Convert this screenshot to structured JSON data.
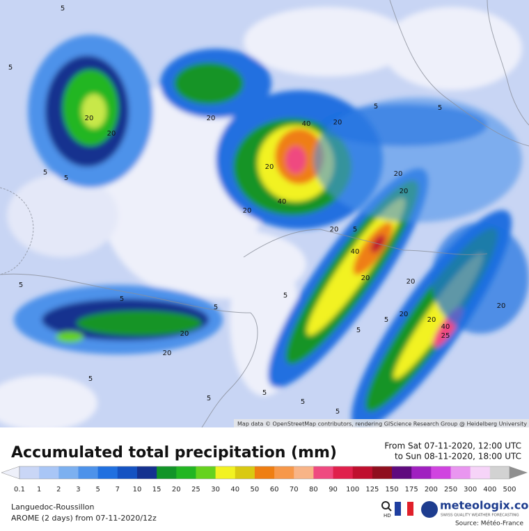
{
  "map": {
    "attribution": "Map data © OpenStreetMap contributors, rendering GIScience Research Group @ Heidelberg University",
    "labels": [
      "5",
      "5",
      "5",
      "5",
      "5",
      "5",
      "5",
      "5",
      "5",
      "5",
      "5",
      "5",
      "5",
      "5",
      "5",
      "5",
      "5",
      "5",
      "20",
      "20",
      "20",
      "20",
      "20",
      "20",
      "20",
      "20",
      "20",
      "20",
      "20",
      "20",
      "20",
      "20",
      "20",
      "20",
      "40",
      "40",
      "40",
      "40",
      "25"
    ]
  },
  "header": {
    "title": "Accumulated total precipitation (mm)",
    "from": "From Sat 07-11-2020, 12:00 UTC",
    "to": "to Sun 08-11-2020, 18:00 UTC"
  },
  "scale": {
    "labels": [
      0.1,
      1,
      2,
      3,
      5,
      7,
      10,
      15,
      20,
      25,
      30,
      40,
      50,
      60,
      70,
      80,
      90,
      100,
      125,
      150,
      175,
      200,
      250,
      300,
      400,
      500
    ],
    "colors": [
      "#c9d6f6",
      "#a9c6f6",
      "#7cb0f0",
      "#4d92ea",
      "#2070e0",
      "#1452c2",
      "#14318f",
      "#129428",
      "#22b622",
      "#66d21e",
      "#f2f222",
      "#d9c912",
      "#ef7e12",
      "#f7984a",
      "#f8b487",
      "#ef4a80",
      "#e0204c",
      "#bf0f2e",
      "#8f0f1e",
      "#5f0a7e",
      "#a020c0",
      "#d044e0",
      "#e996f0",
      "#f6d4f8",
      "#d2d2d2"
    ],
    "low_color": "#eef0fa",
    "high_color": "#8f8f8f"
  },
  "footer": {
    "region": "Languedoc-Roussillon",
    "model": "AROME (2 days) from 07-11-2020/12z",
    "hd": "HD",
    "brand": "meteologix.com",
    "tagline": "SWISS QUALITY WEATHER FORECASTING",
    "source": "Source: Météo-France"
  }
}
